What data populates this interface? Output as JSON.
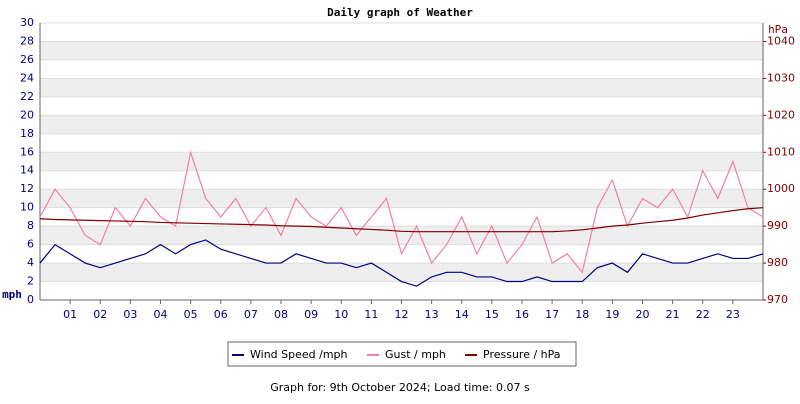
{
  "chart_data": {
    "type": "line",
    "title": "Daily graph of Weather",
    "y_label": "mph",
    "y2_label": "hPa",
    "footer": "Graph for: 9th October 2024; Load time: 0.07 s",
    "x": [
      0,
      0.5,
      1,
      1.5,
      2,
      2.5,
      3,
      3.5,
      4,
      4.5,
      5,
      5.5,
      6,
      6.5,
      7,
      7.5,
      8,
      8.5,
      9,
      9.5,
      10,
      10.5,
      11,
      11.5,
      12,
      12.5,
      13,
      13.5,
      14,
      14.5,
      15,
      15.5,
      16,
      16.5,
      17,
      17.5,
      18,
      18.5,
      19,
      19.5,
      20,
      20.5,
      21,
      21.5,
      22,
      22.5,
      23,
      23.5,
      24
    ],
    "xlim": [
      0,
      24
    ],
    "xticks": [
      {
        "value": 1,
        "label": "01"
      },
      {
        "value": 2,
        "label": "02"
      },
      {
        "value": 3,
        "label": "03"
      },
      {
        "value": 4,
        "label": "04"
      },
      {
        "value": 5,
        "label": "05"
      },
      {
        "value": 6,
        "label": "06"
      },
      {
        "value": 7,
        "label": "07"
      },
      {
        "value": 8,
        "label": "08"
      },
      {
        "value": 9,
        "label": "09"
      },
      10,
      11,
      12,
      13,
      14,
      15,
      16,
      17,
      18,
      19,
      20,
      21,
      22,
      23
    ],
    "ylim": [
      0,
      30
    ],
    "yticks": [
      0,
      2,
      4,
      6,
      8,
      10,
      12,
      14,
      16,
      18,
      20,
      22,
      24,
      26,
      28,
      30
    ],
    "y2lim": [
      970,
      1045
    ],
    "y2ticks": [
      970,
      980,
      990,
      1000,
      1010,
      1020,
      1030,
      1040
    ],
    "grid": true,
    "series": [
      {
        "name": "Wind Speed /mph",
        "color": "#000080",
        "values": [
          4,
          6,
          5,
          4,
          3.5,
          4,
          4.5,
          5,
          6,
          5,
          6,
          6.5,
          5.5,
          5,
          4.5,
          4,
          4,
          5,
          4.5,
          4,
          4,
          3.5,
          4,
          3,
          2,
          1.5,
          2.5,
          3,
          3,
          2.5,
          2.5,
          2,
          2,
          2.5,
          2,
          2,
          2,
          3.5,
          4,
          3,
          5,
          4.5,
          4,
          4,
          4.5,
          5,
          4.5,
          4.5,
          5
        ]
      },
      {
        "name": "Gust / mph",
        "color": "#f57fa5",
        "values": [
          9,
          12,
          10,
          7,
          6,
          10,
          8,
          11,
          9,
          8,
          16,
          11,
          9,
          11,
          8,
          10,
          7,
          11,
          9,
          8,
          10,
          7,
          9,
          11,
          5,
          8,
          4,
          6,
          9,
          5,
          8,
          4,
          6,
          9,
          4,
          5,
          3,
          10,
          13,
          8,
          11,
          10,
          12,
          9,
          14,
          11,
          15,
          10,
          9
        ]
      },
      {
        "name": "Pressure / hPa",
        "color": "#800000",
        "axis": "y2",
        "values": [
          992,
          991.8,
          991.7,
          991.6,
          991.5,
          991.4,
          991.3,
          991.2,
          991,
          990.9,
          990.8,
          990.7,
          990.6,
          990.5,
          990.4,
          990.3,
          990.1,
          990,
          989.9,
          989.7,
          989.5,
          989.3,
          989.1,
          988.9,
          988.6,
          988.5,
          988.5,
          988.5,
          988.5,
          988.5,
          988.5,
          988.5,
          988.5,
          988.5,
          988.5,
          988.7,
          989,
          989.5,
          990,
          990.3,
          990.8,
          991.2,
          991.6,
          992.2,
          993,
          993.6,
          994.2,
          994.7,
          995
        ]
      }
    ]
  }
}
